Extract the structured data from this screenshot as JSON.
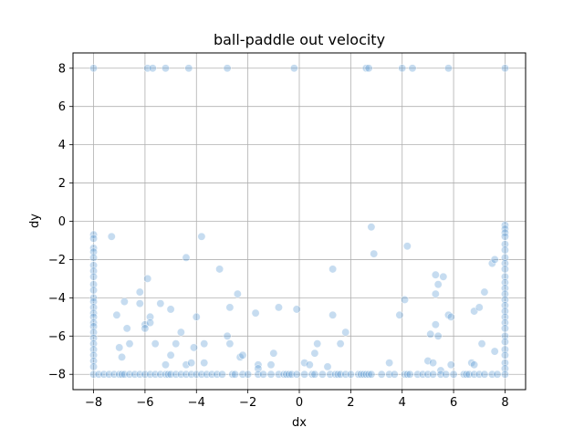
{
  "chart_data": {
    "type": "scatter",
    "title": "ball-paddle out velocity",
    "xlabel": "dx",
    "ylabel": "dy",
    "xlim": [
      -8.8,
      8.8
    ],
    "ylim": [
      -8.8,
      8.8
    ],
    "xticks": [
      -8,
      -6,
      -4,
      -2,
      0,
      2,
      4,
      6,
      8
    ],
    "yticks": [
      -8,
      -6,
      -4,
      -2,
      0,
      2,
      4,
      6,
      8
    ],
    "xtick_labels": [
      "−8",
      "−6",
      "−4",
      "−2",
      "0",
      "2",
      "4",
      "6",
      "8"
    ],
    "ytick_labels": [
      "−8",
      "−6",
      "−4",
      "−2",
      "0",
      "2",
      "4",
      "6",
      "8"
    ],
    "grid": true,
    "point_color": "#5b9bd5",
    "point_alpha": 0.35,
    "series": [
      {
        "points": [
          [
            -8,
            8
          ],
          [
            -5.9,
            8
          ],
          [
            -5.7,
            8
          ],
          [
            -5.2,
            8
          ],
          [
            -4.3,
            8
          ],
          [
            -2.8,
            8
          ],
          [
            -0.2,
            8
          ],
          [
            2.6,
            8
          ],
          [
            2.7,
            8
          ],
          [
            4.0,
            8
          ],
          [
            4.4,
            8
          ],
          [
            5.8,
            8
          ],
          [
            8,
            8
          ],
          [
            -8,
            -0.7
          ],
          [
            -8,
            -0.9
          ],
          [
            -8,
            -1.4
          ],
          [
            -8,
            -1.6
          ],
          [
            -8,
            -1.9
          ],
          [
            -8,
            -2.3
          ],
          [
            -8,
            -2.6
          ],
          [
            -8,
            -2.9
          ],
          [
            -8,
            -3.3
          ],
          [
            -8,
            -3.6
          ],
          [
            -8,
            -4.0
          ],
          [
            -8,
            -4.2
          ],
          [
            -8,
            -4.5
          ],
          [
            -8,
            -4.8
          ],
          [
            -8,
            -5.0
          ],
          [
            -8,
            -5.3
          ],
          [
            -8,
            -5.5
          ],
          [
            -8,
            -5.8
          ],
          [
            -8,
            -6.1
          ],
          [
            -8,
            -6.4
          ],
          [
            -8,
            -6.7
          ],
          [
            -8,
            -7.0
          ],
          [
            -8,
            -7.3
          ],
          [
            -8,
            -7.6
          ],
          [
            -8,
            -8
          ],
          [
            8,
            -0.2
          ],
          [
            8,
            -0.4
          ],
          [
            8,
            -0.6
          ],
          [
            8,
            -0.8
          ],
          [
            8,
            -1.2
          ],
          [
            8,
            -1.5
          ],
          [
            8,
            -1.9
          ],
          [
            8,
            -2.2
          ],
          [
            8,
            -2.5
          ],
          [
            8,
            -2.9
          ],
          [
            8,
            -3.2
          ],
          [
            8,
            -3.5
          ],
          [
            8,
            -3.8
          ],
          [
            8,
            -4.1
          ],
          [
            8,
            -4.4
          ],
          [
            8,
            -4.7
          ],
          [
            8,
            -5.0
          ],
          [
            8,
            -5.3
          ],
          [
            8,
            -5.6
          ],
          [
            8,
            -6.0
          ],
          [
            8,
            -6.3
          ],
          [
            8,
            -6.7
          ],
          [
            8,
            -7.0
          ],
          [
            8,
            -7.4
          ],
          [
            8,
            -7.7
          ],
          [
            8,
            -8
          ],
          [
            -7.3,
            -0.8
          ],
          [
            -7.1,
            -4.9
          ],
          [
            -7.0,
            -6.6
          ],
          [
            -6.9,
            -7.1
          ],
          [
            -6.8,
            -4.2
          ],
          [
            -6.7,
            -5.6
          ],
          [
            -6.6,
            -6.4
          ],
          [
            -6.2,
            -3.7
          ],
          [
            -6.2,
            -4.3
          ],
          [
            -6.0,
            -5.4
          ],
          [
            -6.0,
            -5.6
          ],
          [
            -5.9,
            -3.0
          ],
          [
            -5.8,
            -5.0
          ],
          [
            -5.8,
            -5.3
          ],
          [
            -5.6,
            -6.4
          ],
          [
            -5.4,
            -4.3
          ],
          [
            -5.2,
            -7.5
          ],
          [
            -5.0,
            -4.6
          ],
          [
            -5.0,
            -7.0
          ],
          [
            -4.8,
            -6.4
          ],
          [
            -4.6,
            -5.8
          ],
          [
            -4.4,
            -1.9
          ],
          [
            -4.4,
            -7.5
          ],
          [
            -4.2,
            -7.4
          ],
          [
            -4.1,
            -6.6
          ],
          [
            -4.0,
            -5.0
          ],
          [
            -3.8,
            -0.8
          ],
          [
            -3.7,
            -6.4
          ],
          [
            -3.7,
            -7.4
          ],
          [
            -3.1,
            -2.5
          ],
          [
            -2.8,
            -6.0
          ],
          [
            -2.7,
            -4.5
          ],
          [
            -2.7,
            -6.4
          ],
          [
            -2.4,
            -3.8
          ],
          [
            -2.3,
            -7.1
          ],
          [
            -2.2,
            -7.0
          ],
          [
            -1.7,
            -4.8
          ],
          [
            -1.6,
            -7.5
          ],
          [
            -1.6,
            -7.7
          ],
          [
            -1.1,
            -7.5
          ],
          [
            -1.0,
            -6.9
          ],
          [
            -0.8,
            -4.5
          ],
          [
            -0.1,
            -4.6
          ],
          [
            0.2,
            -7.4
          ],
          [
            0.4,
            -7.5
          ],
          [
            0.6,
            -6.9
          ],
          [
            0.7,
            -6.4
          ],
          [
            1.1,
            -7.6
          ],
          [
            1.3,
            -2.5
          ],
          [
            1.3,
            -4.9
          ],
          [
            1.6,
            -6.4
          ],
          [
            1.8,
            -5.8
          ],
          [
            2.8,
            -0.3
          ],
          [
            2.9,
            -1.7
          ],
          [
            3.5,
            -7.4
          ],
          [
            3.9,
            -4.9
          ],
          [
            4.1,
            -4.1
          ],
          [
            4.2,
            -1.3
          ],
          [
            5.0,
            -7.3
          ],
          [
            5.1,
            -5.9
          ],
          [
            5.2,
            -7.4
          ],
          [
            5.3,
            -2.8
          ],
          [
            5.3,
            -3.8
          ],
          [
            5.3,
            -5.4
          ],
          [
            5.4,
            -3.3
          ],
          [
            5.4,
            -6.0
          ],
          [
            5.5,
            -7.8
          ],
          [
            5.6,
            -2.9
          ],
          [
            5.8,
            -4.9
          ],
          [
            5.9,
            -5.0
          ],
          [
            5.9,
            -7.5
          ],
          [
            6.7,
            -7.4
          ],
          [
            6.8,
            -4.7
          ],
          [
            6.8,
            -7.5
          ],
          [
            7.0,
            -4.5
          ],
          [
            7.1,
            -6.4
          ],
          [
            7.2,
            -3.7
          ],
          [
            7.5,
            -2.2
          ],
          [
            7.6,
            -2.0
          ],
          [
            7.6,
            -6.8
          ],
          [
            -7.8,
            -8
          ],
          [
            -7.6,
            -8
          ],
          [
            -7.4,
            -8
          ],
          [
            -7.2,
            -8
          ],
          [
            -7.0,
            -8
          ],
          [
            -6.9,
            -8
          ],
          [
            -6.8,
            -8
          ],
          [
            -6.6,
            -8
          ],
          [
            -6.4,
            -8
          ],
          [
            -6.2,
            -8
          ],
          [
            -6.0,
            -8
          ],
          [
            -5.8,
            -8
          ],
          [
            -5.6,
            -8
          ],
          [
            -5.4,
            -8
          ],
          [
            -5.2,
            -8
          ],
          [
            -5.1,
            -8
          ],
          [
            -5.0,
            -8
          ],
          [
            -4.8,
            -8
          ],
          [
            -4.6,
            -8
          ],
          [
            -4.4,
            -8
          ],
          [
            -4.2,
            -8
          ],
          [
            -4.0,
            -8
          ],
          [
            -3.8,
            -8
          ],
          [
            -3.6,
            -8
          ],
          [
            -3.4,
            -8
          ],
          [
            -3.2,
            -8
          ],
          [
            -3.0,
            -8
          ],
          [
            -2.6,
            -8
          ],
          [
            -2.5,
            -8
          ],
          [
            -2.2,
            -8
          ],
          [
            -2.0,
            -8
          ],
          [
            -1.6,
            -8
          ],
          [
            -1.4,
            -8
          ],
          [
            -1.1,
            -8
          ],
          [
            -0.8,
            -8
          ],
          [
            -0.6,
            -8
          ],
          [
            -0.5,
            -8
          ],
          [
            -0.4,
            -8
          ],
          [
            -0.3,
            -8
          ],
          [
            -0.1,
            -8
          ],
          [
            0.2,
            -8
          ],
          [
            0.5,
            -8
          ],
          [
            0.6,
            -8
          ],
          [
            0.9,
            -8
          ],
          [
            1.2,
            -8
          ],
          [
            1.4,
            -8
          ],
          [
            1.5,
            -8
          ],
          [
            1.6,
            -8
          ],
          [
            1.8,
            -8
          ],
          [
            2.0,
            -8
          ],
          [
            2.3,
            -8
          ],
          [
            2.4,
            -8
          ],
          [
            2.5,
            -8
          ],
          [
            2.6,
            -8
          ],
          [
            2.7,
            -8
          ],
          [
            2.8,
            -8
          ],
          [
            3.2,
            -8
          ],
          [
            3.5,
            -8
          ],
          [
            3.7,
            -8
          ],
          [
            4.1,
            -8
          ],
          [
            4.2,
            -8
          ],
          [
            4.3,
            -8
          ],
          [
            4.6,
            -8
          ],
          [
            4.8,
            -8
          ],
          [
            5.0,
            -8
          ],
          [
            5.2,
            -8
          ],
          [
            5.5,
            -8
          ],
          [
            5.7,
            -8
          ],
          [
            6.0,
            -8
          ],
          [
            6.4,
            -8
          ],
          [
            6.5,
            -8
          ],
          [
            6.6,
            -8
          ],
          [
            6.8,
            -8
          ],
          [
            7.0,
            -8
          ],
          [
            7.2,
            -8
          ],
          [
            7.5,
            -8
          ],
          [
            7.7,
            -8
          ]
        ]
      }
    ]
  }
}
